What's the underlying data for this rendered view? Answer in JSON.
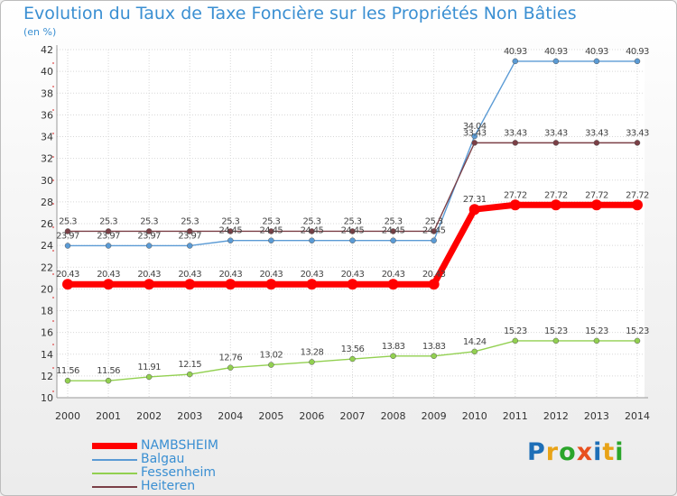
{
  "chart_data": {
    "type": "line",
    "title": "Evolution du Taux de Taxe Foncière sur les Propriétés Non Bâties",
    "ylabel": "(en %)",
    "xlabel": "",
    "x": [
      "2000",
      "2001",
      "2002",
      "2003",
      "2004",
      "2005",
      "2006",
      "2007",
      "2008",
      "2009",
      "2010",
      "2011",
      "2012",
      "2013",
      "2014"
    ],
    "ylim": [
      10,
      42
    ],
    "yticks": [
      "10",
      "12",
      "14",
      "16",
      "18",
      "20",
      "22",
      "24",
      "26",
      "28",
      "30",
      "32",
      "34",
      "36",
      "38",
      "40",
      "42"
    ],
    "series": [
      {
        "name": "NAMBSHEIM",
        "color": "#ff0000",
        "values": [
          20.43,
          20.43,
          20.43,
          20.43,
          20.43,
          20.43,
          20.43,
          20.43,
          20.43,
          20.43,
          27.31,
          27.72,
          27.72,
          27.72,
          27.72
        ],
        "labels": [
          "20.43",
          "20.43",
          "20.43",
          "20.43",
          "20.43",
          "20.43",
          "20.43",
          "20.43",
          "20.43",
          "20.43",
          "27.31",
          "27.72",
          "27.72",
          "27.72",
          "27.72"
        ]
      },
      {
        "name": "Balgau",
        "color": "#5b9bd5",
        "values": [
          23.97,
          23.97,
          23.97,
          23.97,
          24.45,
          24.45,
          24.45,
          24.45,
          24.45,
          24.45,
          34.04,
          40.93,
          40.93,
          40.93,
          40.93
        ],
        "labels": [
          "23.97",
          "23.97",
          "23.97",
          "23.97",
          "24.45",
          "24.45",
          "24.45",
          "24.45",
          "24.45",
          "24.45",
          "34.04",
          "40.93",
          "40.93",
          "40.93",
          "40.93"
        ]
      },
      {
        "name": "Fessenheim",
        "color": "#92d050",
        "values": [
          11.56,
          11.56,
          11.91,
          12.15,
          12.76,
          13.02,
          13.28,
          13.56,
          13.83,
          13.83,
          14.24,
          15.23,
          15.23,
          15.23,
          15.23
        ],
        "labels": [
          "11.56",
          "11.56",
          "11.91",
          "12.15",
          "12.76",
          "13.02",
          "13.28",
          "13.56",
          "13.83",
          "13.83",
          "14.24",
          "15.23",
          "15.23",
          "15.23",
          "15.23"
        ]
      },
      {
        "name": "Heiteren",
        "color": "#7b3f46",
        "values": [
          25.3,
          25.3,
          25.3,
          25.3,
          25.3,
          25.3,
          25.3,
          25.3,
          25.3,
          25.3,
          33.43,
          33.43,
          33.43,
          33.43,
          33.43
        ],
        "labels": [
          "25.3",
          "25.3",
          "25.3",
          "25.3",
          "25.3",
          "25.3",
          "25.3",
          "25.3",
          "25.3",
          "25.3",
          "33.43",
          "33.43",
          "33.43",
          "33.43",
          "33.43"
        ]
      }
    ],
    "grid": true
  },
  "brand": {
    "letters": [
      "P",
      "r",
      "o",
      "x",
      "i",
      "t",
      "i"
    ],
    "colors": [
      "#1e6fb7",
      "#e8a317",
      "#2aa52a",
      "#e8501e",
      "#1e6fb7",
      "#e8a317",
      "#2aa52a"
    ]
  }
}
